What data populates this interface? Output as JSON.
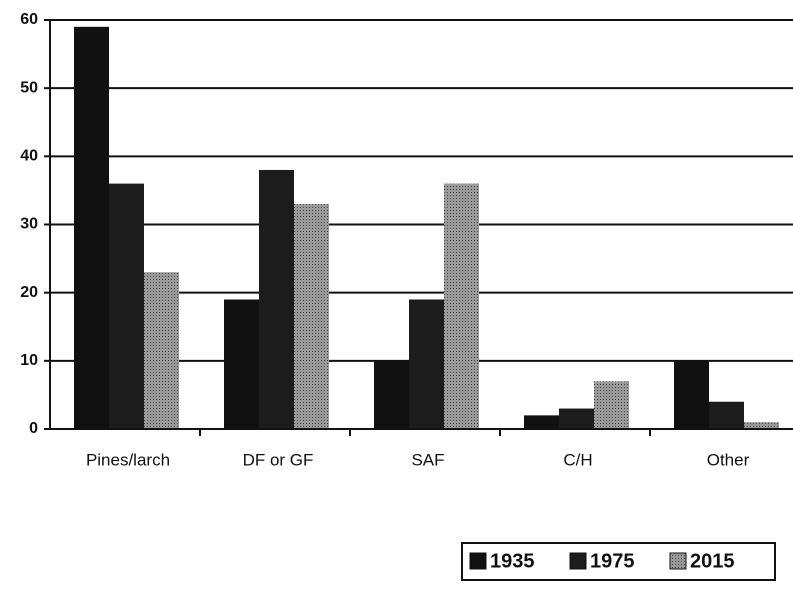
{
  "chart_data": {
    "type": "bar",
    "categories": [
      "Pines/larch",
      "DF or GF",
      "SAF",
      "C/H",
      "Other"
    ],
    "series": [
      {
        "name": "1935",
        "color": "#111111",
        "values": [
          59,
          19,
          10,
          2,
          10
        ]
      },
      {
        "name": "1975",
        "color": "#1c1c1c",
        "values": [
          36,
          38,
          19,
          3,
          4
        ]
      },
      {
        "name": "2015",
        "color": "#8a8a8a",
        "values": [
          23,
          33,
          36,
          7,
          1
        ]
      }
    ],
    "ylim": [
      0,
      60
    ],
    "yticks": [
      0,
      10,
      20,
      30,
      40,
      50,
      60
    ],
    "grid": true,
    "legend": "bottom-right"
  }
}
